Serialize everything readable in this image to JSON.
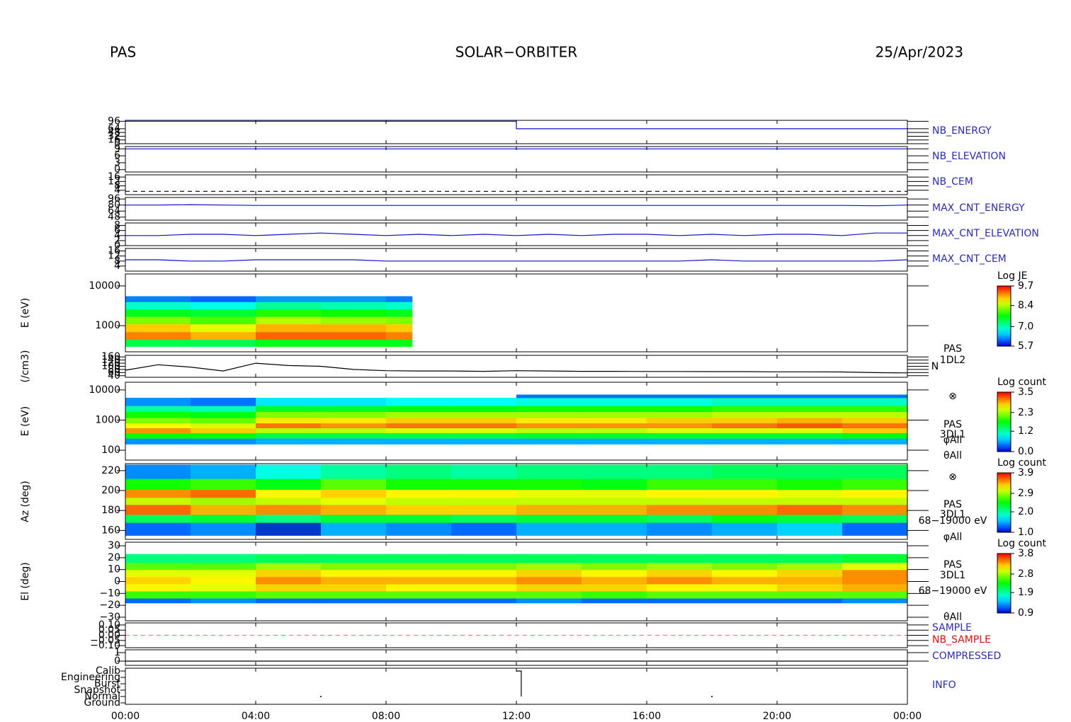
{
  "header": {
    "left": "PAS",
    "center": "SOLAR−ORBITER",
    "right": "25/Apr/2023"
  },
  "time_axis": {
    "xlim": [
      0,
      24
    ],
    "xticks": [
      {
        "value": 0,
        "label": "00:00"
      },
      {
        "value": 4,
        "label": "04:00"
      },
      {
        "value": 8,
        "label": "08:00"
      },
      {
        "value": 12,
        "label": "12:00"
      },
      {
        "value": 16,
        "label": "16:00"
      },
      {
        "value": 20,
        "label": "20:00"
      },
      {
        "value": 24,
        "label": "00:00"
      }
    ]
  },
  "chart_data": [
    {
      "type": "line",
      "labels": [
        {
          "text": "NB_ENERGY",
          "color": "#2b2bb5"
        }
      ],
      "ylim": [
        0,
        100
      ],
      "yticks": [
        0,
        16,
        32,
        48,
        64,
        96
      ],
      "color": "#1010c8",
      "x": [
        0,
        12,
        12,
        24
      ],
      "values": [
        96,
        96,
        64,
        64
      ]
    },
    {
      "type": "line",
      "labels": [
        {
          "text": "NB_ELEVATION",
          "color": "#2b2bb5"
        }
      ],
      "ylim": [
        -1,
        10
      ],
      "yticks": [
        0,
        3,
        6,
        9
      ],
      "color": "#1010c8",
      "x": [
        0,
        24
      ],
      "values": [
        9,
        9
      ]
    },
    {
      "type": "line",
      "labels": [
        {
          "text": "NB_CEM",
          "color": "#2b2bb5"
        }
      ],
      "ylim": [
        0,
        18
      ],
      "yticks": [
        4,
        8,
        12,
        16
      ],
      "color": "#000000",
      "dashed": true,
      "x": [
        0,
        24
      ],
      "values": [
        3,
        3
      ]
    },
    {
      "type": "line",
      "labels": [
        {
          "text": "MAX_CNT_ENERGY",
          "color": "#2b2bb5"
        }
      ],
      "ylim": [
        40,
        100
      ],
      "yticks": [
        48,
        64,
        80,
        96
      ],
      "color": "#1010c8",
      "x": [
        0,
        1,
        2,
        3,
        4,
        5,
        6,
        7,
        8,
        9,
        10,
        11,
        12,
        13,
        14,
        15,
        16,
        17,
        18,
        19,
        20,
        21,
        22,
        23,
        24
      ],
      "values": [
        80,
        80,
        81,
        80,
        79,
        79,
        79,
        79,
        79,
        79,
        79,
        79,
        79,
        79,
        79,
        79,
        79,
        79,
        79,
        79,
        79,
        79,
        79,
        78,
        80
      ]
    },
    {
      "type": "line",
      "labels": [
        {
          "text": "MAX_CNT_ELEVATION",
          "color": "#2b2bb5"
        }
      ],
      "ylim": [
        0,
        9
      ],
      "yticks": [
        0,
        2,
        4,
        6,
        8
      ],
      "color": "#1010c8",
      "x": [
        0,
        1,
        2,
        3,
        4,
        5,
        6,
        7,
        8,
        9,
        10,
        11,
        12,
        13,
        14,
        15,
        16,
        17,
        18,
        19,
        20,
        21,
        22,
        23,
        24
      ],
      "values": [
        4,
        4,
        4.5,
        4.5,
        4,
        4.5,
        5,
        4.5,
        4,
        4.5,
        4,
        4.5,
        4,
        4.5,
        4,
        4.5,
        4.5,
        4,
        4.5,
        4,
        4.5,
        4.5,
        4,
        5,
        5
      ]
    },
    {
      "type": "line",
      "labels": [
        {
          "text": "MAX_CNT_CEM",
          "color": "#2b2bb5"
        }
      ],
      "ylim": [
        0,
        18
      ],
      "yticks": [
        4,
        8,
        12,
        16
      ],
      "color": "#1010c8",
      "x": [
        0,
        1,
        2,
        3,
        4,
        5,
        6,
        7,
        8,
        9,
        10,
        11,
        12,
        13,
        14,
        15,
        16,
        17,
        18,
        19,
        20,
        21,
        22,
        23,
        24
      ],
      "values": [
        9,
        9,
        8,
        8,
        9,
        9,
        9,
        9,
        8,
        8,
        8,
        8,
        8,
        8,
        8,
        8,
        8,
        8,
        9,
        8,
        8,
        8,
        8,
        8,
        9
      ]
    },
    {
      "type": "heatmap",
      "ylabel": "E (eV)",
      "log": true,
      "ylim": [
        220,
        20000
      ],
      "yticks": [
        1000,
        10000
      ],
      "notes": [
        "PAS",
        "1DL2"
      ],
      "xbins": [
        0,
        2,
        4,
        6,
        8,
        8.8
      ],
      "ybins": [
        300,
        450,
        700,
        1100,
        1700,
        2600,
        4000,
        5500
      ],
      "z": [
        [
          7.4,
          7.4,
          7.6,
          7.6,
          7.6
        ],
        [
          9.2,
          9.0,
          9.3,
          9.3,
          9.2
        ],
        [
          8.9,
          8.6,
          9.0,
          9.0,
          8.9
        ],
        [
          8.2,
          8.0,
          8.4,
          8.3,
          8.2
        ],
        [
          7.6,
          7.5,
          7.8,
          7.7,
          7.6
        ],
        [
          6.9,
          6.8,
          7.1,
          7.0,
          6.9
        ],
        [
          6.2,
          6.1,
          6.3,
          6.3,
          6.2
        ]
      ],
      "zlim": [
        5.7,
        9.7
      ],
      "colorbar": {
        "title": "Log JE",
        "ticks": [
          9.7,
          8.4,
          {
            "value": 7,
            "label": "7.0"
          },
          5.7
        ]
      }
    },
    {
      "type": "line",
      "ylabel": "(/cm3)",
      "notes": [
        "N"
      ],
      "ylim": [
        30,
        170
      ],
      "yticks": [
        40,
        60,
        80,
        100,
        120,
        140,
        160
      ],
      "color": "#000000",
      "x": [
        0,
        1,
        2,
        3,
        4,
        5,
        6,
        7,
        8,
        9,
        10,
        11,
        12,
        13,
        14,
        15,
        16,
        17,
        18,
        19,
        20,
        21,
        22,
        23,
        24
      ],
      "values": [
        75,
        110,
        95,
        70,
        120,
        105,
        100,
        80,
        72,
        70,
        70,
        68,
        72,
        70,
        68,
        68,
        67,
        67,
        66,
        66,
        65,
        65,
        64,
        60,
        58
      ]
    },
    {
      "type": "heatmap",
      "ylabel": "E (eV)",
      "log": true,
      "ylim": [
        47,
        18000
      ],
      "yticks": [
        100,
        1000,
        10000
      ],
      "notes": [
        "⊗",
        "PAS",
        "3DL1",
        "φAll",
        "θAll"
      ],
      "xbins": [
        0,
        2,
        4,
        6,
        8,
        10,
        12,
        14,
        16,
        18,
        20,
        22,
        24
      ],
      "ybins": [
        160,
        250,
        380,
        550,
        800,
        1200,
        1900,
        3000,
        5500,
        7000
      ],
      "z": [
        [
          0.5,
          0.5,
          0.6,
          0.6,
          0.6,
          0.6,
          0.6,
          0.6,
          0.6,
          0.6,
          0.6,
          0.6
        ],
        [
          1.8,
          1.8,
          1.5,
          1.5,
          1.5,
          1.5,
          1.6,
          1.6,
          1.6,
          1.6,
          1.6,
          1.7
        ],
        [
          3.0,
          2.8,
          2.4,
          2.4,
          2.5,
          2.5,
          2.4,
          2.4,
          2.5,
          2.5,
          2.5,
          2.8
        ],
        [
          2.6,
          2.5,
          3.1,
          3.0,
          3.1,
          3.1,
          3.0,
          3.0,
          3.0,
          3.1,
          3.2,
          3.1
        ],
        [
          2.2,
          2.1,
          2.7,
          2.7,
          2.8,
          2.8,
          2.7,
          2.7,
          2.8,
          2.8,
          2.9,
          2.8
        ],
        [
          1.8,
          1.7,
          2.2,
          2.2,
          2.3,
          2.3,
          2.3,
          2.3,
          2.3,
          2.4,
          2.4,
          2.4
        ],
        [
          1.2,
          1.1,
          1.6,
          1.6,
          1.7,
          1.7,
          1.8,
          1.8,
          1.8,
          1.9,
          1.9,
          1.9
        ],
        [
          0.5,
          0.4,
          0.8,
          0.8,
          0.9,
          0.9,
          1.0,
          1.0,
          1.0,
          1.1,
          1.1,
          1.1
        ],
        [
          null,
          null,
          null,
          null,
          null,
          null,
          0.4,
          0.4,
          0.4,
          0.4,
          0.4,
          0.4
        ]
      ],
      "zlim": [
        0,
        3.5
      ],
      "colorbar": {
        "title": "Log count",
        "ticks": [
          3.5,
          2.3,
          1.2,
          {
            "value": 0,
            "label": "0.0"
          }
        ]
      }
    },
    {
      "type": "heatmap",
      "ylabel": "Az (deg)",
      "ylim": [
        151,
        227
      ],
      "yticks": [
        160,
        180,
        200,
        220
      ],
      "notes": [
        "⊗",
        "PAS",
        "3DL1",
        "68−19000 eV",
        "φAll"
      ],
      "xbins": [
        0,
        2,
        4,
        6,
        8,
        10,
        12,
        14,
        16,
        18,
        20,
        22,
        24
      ],
      "ybins": [
        155,
        168,
        176,
        186,
        193,
        201,
        212,
        226
      ],
      "z": [
        [
          1.3,
          1.4,
          1.2,
          1.5,
          1.4,
          1.3,
          1.5,
          1.5,
          1.4,
          1.5,
          1.6,
          1.3
        ],
        [
          2.2,
          2.3,
          2.1,
          2.3,
          2.3,
          2.2,
          2.3,
          2.3,
          2.2,
          2.4,
          2.3,
          2.2
        ],
        [
          3.6,
          3.4,
          3.5,
          3.4,
          3.3,
          3.3,
          3.4,
          3.4,
          3.5,
          3.5,
          3.6,
          3.5
        ],
        [
          3.0,
          2.9,
          3.0,
          3.1,
          3.0,
          3.0,
          3.0,
          3.0,
          3.0,
          3.0,
          3.0,
          3.0
        ],
        [
          3.5,
          3.6,
          3.2,
          3.3,
          3.2,
          3.2,
          3.1,
          3.1,
          3.2,
          3.2,
          3.1,
          3.2
        ],
        [
          2.5,
          2.6,
          2.4,
          2.7,
          2.5,
          2.5,
          2.5,
          2.4,
          2.6,
          2.6,
          2.5,
          2.6
        ],
        [
          1.4,
          1.5,
          1.8,
          2.0,
          2.1,
          2.0,
          2.1,
          2.1,
          2.1,
          2.2,
          2.2,
          2.2
        ]
      ],
      "zlim": [
        1,
        3.9
      ],
      "colorbar": {
        "title": "Log count",
        "ticks": [
          3.9,
          2.9,
          {
            "value": 2,
            "label": "2.0"
          },
          {
            "value": 1,
            "label": "1.0"
          }
        ]
      }
    },
    {
      "type": "heatmap",
      "ylabel": "El (deg)",
      "ylim": [
        -33,
        33
      ],
      "yticks": [
        {
          "value": -30,
          "label": "−30"
        },
        {
          "value": -20,
          "label": "−20"
        },
        {
          "value": -10,
          "label": "−10"
        },
        0,
        10,
        20,
        30
      ],
      "notes": [
        "PAS",
        "3DL1",
        "68−19000 eV",
        "θAll"
      ],
      "xbins": [
        0,
        2,
        4,
        6,
        8,
        10,
        12,
        14,
        16,
        18,
        20,
        22,
        24
      ],
      "ybins": [
        -18,
        -14,
        -8,
        -2,
        4,
        10,
        16,
        23
      ],
      "z": [
        [
          1.2,
          1.3,
          1.2,
          1.2,
          1.2,
          1.2,
          1.3,
          1.2,
          1.2,
          1.2,
          1.2,
          1.3
        ],
        [
          2.5,
          2.5,
          2.6,
          2.6,
          2.6,
          2.6,
          2.6,
          2.5,
          2.6,
          2.6,
          2.6,
          2.6
        ],
        [
          3.1,
          3.0,
          3.2,
          3.2,
          3.1,
          3.1,
          3.2,
          3.2,
          3.1,
          3.1,
          3.2,
          3.3
        ],
        [
          3.2,
          3.1,
          3.4,
          3.3,
          3.3,
          3.3,
          3.4,
          3.3,
          3.4,
          3.3,
          3.3,
          3.4
        ],
        [
          3.0,
          3.0,
          3.2,
          3.1,
          3.1,
          3.1,
          3.2,
          3.1,
          3.2,
          3.1,
          3.2,
          3.4
        ],
        [
          2.6,
          2.6,
          2.8,
          2.7,
          2.7,
          2.7,
          2.8,
          2.7,
          2.8,
          2.7,
          2.8,
          3.0
        ],
        [
          2.0,
          2.0,
          2.1,
          2.1,
          2.1,
          2.1,
          2.1,
          2.1,
          2.1,
          2.1,
          2.1,
          2.2
        ]
      ],
      "zlim": [
        0.9,
        3.8
      ],
      "colorbar": {
        "title": "Log count",
        "ticks": [
          3.8,
          2.8,
          1.9,
          0.9
        ]
      }
    },
    {
      "type": "line",
      "labels": [
        {
          "text": "SAMPLE",
          "color": "#2b2bb5"
        },
        {
          "text": "NB_SAMPLE",
          "color": "#e01010"
        }
      ],
      "ylim": [
        -0.12,
        0.12
      ],
      "yticks": [
        {
          "value": 0.1,
          "label": "0.10"
        },
        {
          "value": 0.05,
          "label": "0.05"
        },
        {
          "value": 0,
          "label": "0.00"
        },
        {
          "value": -0.05,
          "label": "−0.05"
        },
        {
          "value": -0.1,
          "label": "−0.10"
        }
      ],
      "color": "#f08080",
      "dashed": true,
      "x": [
        0,
        24
      ],
      "values": [
        0,
        0
      ]
    },
    {
      "type": "line",
      "labels": [
        {
          "text": "COMPRESSED",
          "color": "#2b2bb5"
        }
      ],
      "ylim": [
        -0.5,
        1.33
      ],
      "yticks": [
        0,
        1
      ],
      "color": "#000000",
      "x": [
        0,
        24
      ],
      "values": [
        0,
        0
      ]
    },
    {
      "type": "category_line",
      "labels": [
        {
          "text": "INFO",
          "color": "#2b2bb5"
        }
      ],
      "categories": [
        "Calib",
        "Engineering",
        "Burst",
        "Snapshot",
        "Normal",
        "Ground"
      ],
      "color": "#000000",
      "x": [
        12,
        12.15,
        12.15
      ],
      "values": [
        "Calib",
        "Calib",
        "Normal"
      ],
      "points_x": [
        6,
        18
      ],
      "points": [
        "Normal",
        "Normal"
      ]
    }
  ]
}
